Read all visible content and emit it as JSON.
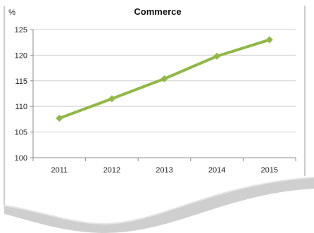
{
  "chart_data": {
    "type": "line",
    "title": "Commerce",
    "unit_label": "%",
    "xlabel": "",
    "ylabel": "",
    "categories": [
      "2011",
      "2012",
      "2013",
      "2014",
      "2015"
    ],
    "series": [
      {
        "values": [
          107.7,
          111.5,
          115.4,
          119.8,
          123.0
        ]
      }
    ],
    "ylim": [
      100,
      125
    ],
    "yticks": [
      100,
      105,
      110,
      115,
      120,
      125
    ],
    "grid": true,
    "legend": "none",
    "colors": {
      "line": "#8fb845",
      "grid": "#d0d0d0",
      "axis": "#8c8c8c",
      "wave": "#cfcfcf"
    }
  }
}
